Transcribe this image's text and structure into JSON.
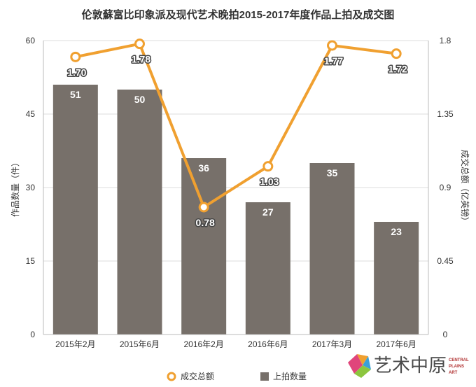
{
  "chart_data": {
    "type": "bar+line",
    "title": "伦敦蘇富比印象派及现代艺术晚拍2015-2017年度作品上拍及成交图",
    "categories": [
      "2015年2月",
      "2015年6月",
      "2016年2月",
      "2016年6月",
      "2017年3月",
      "2017年6月"
    ],
    "series": [
      {
        "name": "上拍数量",
        "type": "bar",
        "axis": "left",
        "color": "#77706a",
        "values": [
          51,
          50,
          36,
          27,
          35,
          23
        ]
      },
      {
        "name": "成交总额",
        "type": "line",
        "axis": "right",
        "color": "#f0a030",
        "values": [
          1.7,
          1.78,
          0.78,
          1.03,
          1.77,
          1.72
        ]
      }
    ],
    "y_left": {
      "label": "作品数量（件）",
      "ticks": [
        "0",
        "15",
        "30",
        "45",
        "60"
      ],
      "range": [
        0,
        60
      ]
    },
    "y_right": {
      "label": "成交总额（亿英镑）",
      "ticks": [
        "0",
        "0.45",
        "0.9",
        "1.35",
        "1.8"
      ],
      "range": [
        0,
        1.8
      ]
    },
    "bar_labels": [
      "51",
      "50",
      "36",
      "27",
      "35",
      "23"
    ],
    "line_labels": [
      "1.70",
      "1.78",
      "0.78",
      "1.03",
      "1.77",
      "1.72"
    ],
    "legend": [
      {
        "label": "成交总额",
        "color": "#f0a030",
        "marker": "circle"
      },
      {
        "label": "上拍数量",
        "color": "#77706a",
        "marker": "square"
      }
    ],
    "legend_position": "bottom",
    "grid": true
  },
  "logo": {
    "text_cn": "艺术中原",
    "text_en": [
      "CENTRAL",
      "PLAINS",
      "ART"
    ]
  }
}
